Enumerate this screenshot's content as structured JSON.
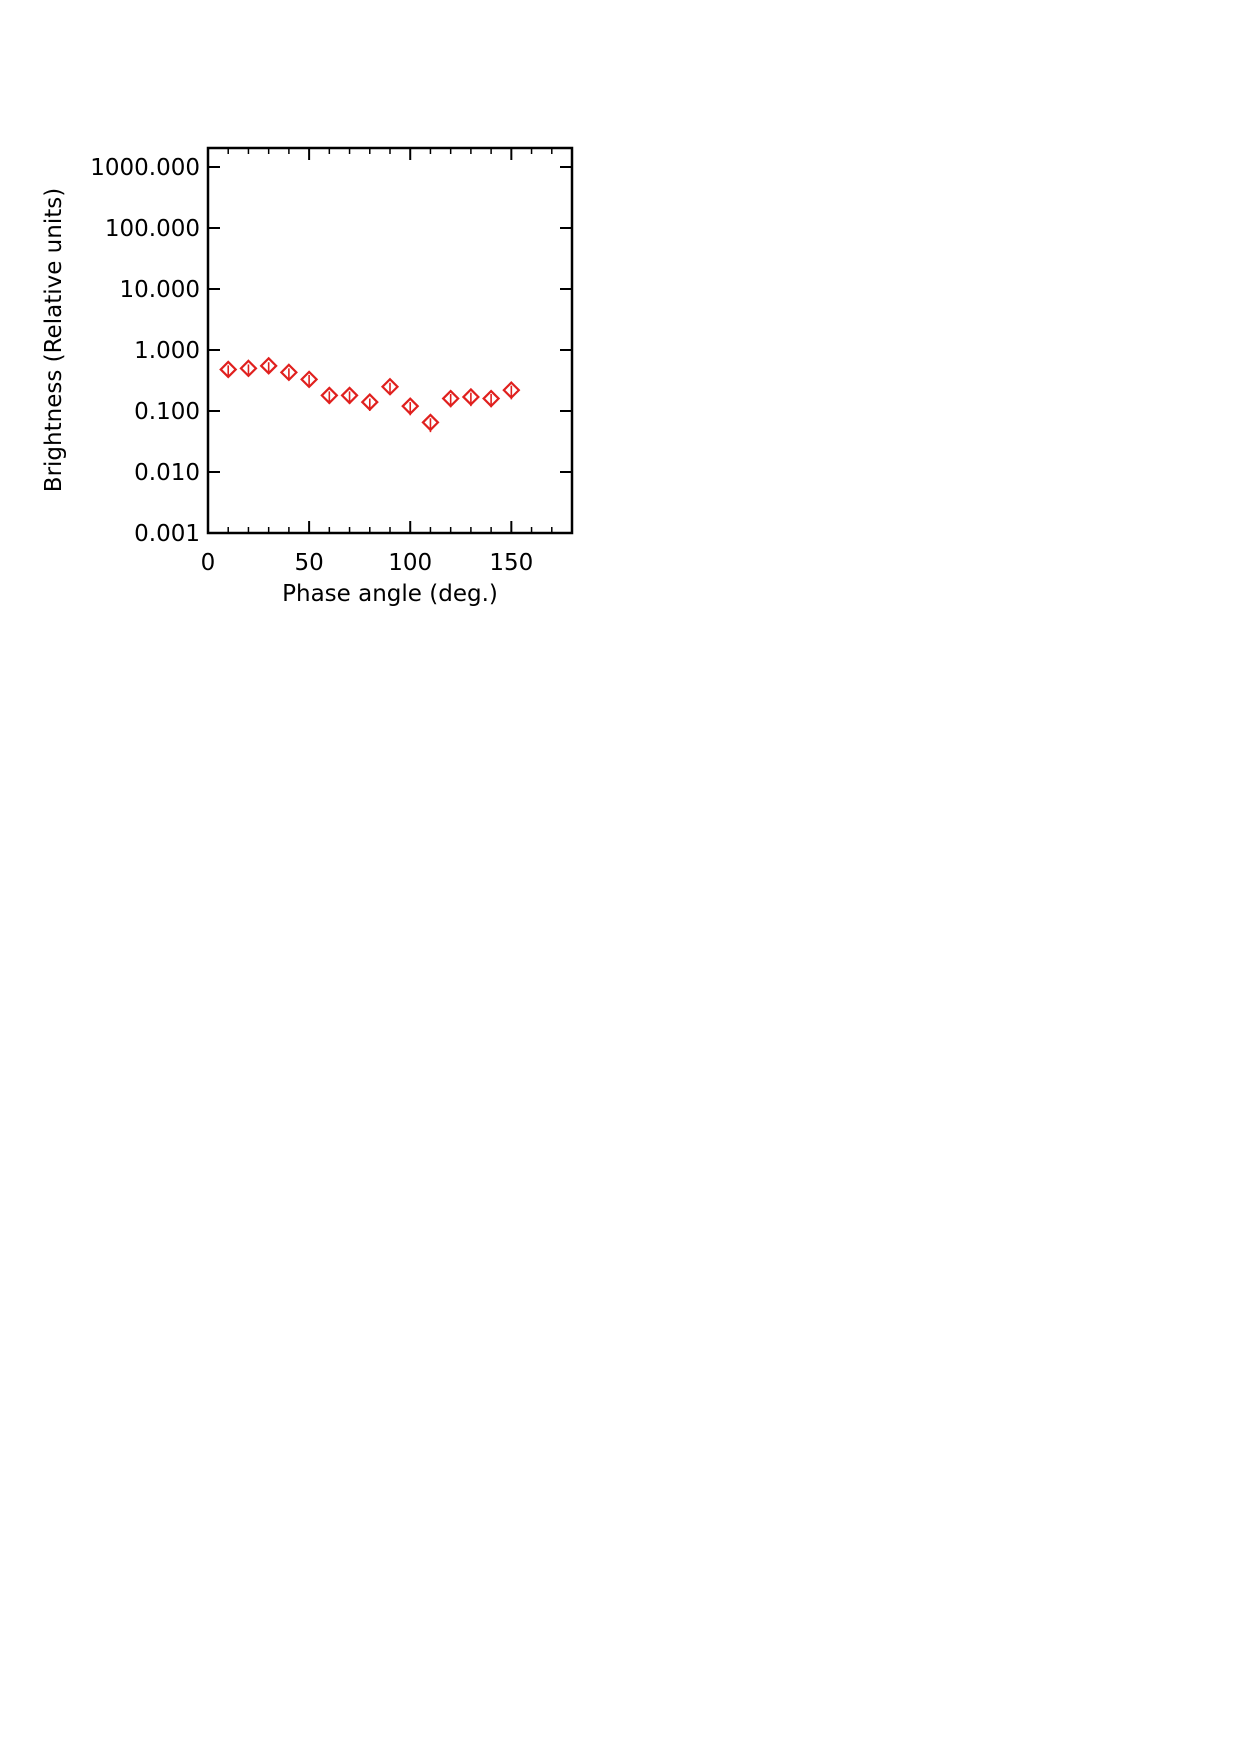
{
  "chart_data": {
    "type": "scatter",
    "title": "",
    "xlabel": "Phase angle (deg.)",
    "ylabel": "Brightness (Relative units)",
    "xlim": [
      0,
      180
    ],
    "ylim": [
      0.001,
      2000
    ],
    "y_scale": "log",
    "x_ticks": [
      0,
      50,
      100,
      150
    ],
    "x_tick_labels": [
      "0",
      "50",
      "100",
      "150"
    ],
    "y_ticks": [
      0.001,
      0.01,
      0.1,
      1,
      10,
      100,
      1000
    ],
    "y_tick_labels": [
      "0.001",
      "0.010",
      "0.100",
      "1.000",
      "10.000",
      "100.000",
      "1000.000"
    ],
    "grid": false,
    "marker": "diamond",
    "error_bars": true,
    "color": "#e0201e",
    "series": [
      {
        "x": [
          10,
          20,
          30,
          40,
          50,
          60,
          70,
          80,
          90,
          100,
          110,
          120,
          130,
          140,
          150
        ],
        "y": [
          0.48,
          0.5,
          0.55,
          0.43,
          0.33,
          0.18,
          0.18,
          0.14,
          0.25,
          0.12,
          0.065,
          0.16,
          0.17,
          0.16,
          0.22
        ],
        "y_err_low": [
          0.38,
          0.4,
          0.44,
          0.34,
          0.25,
          0.13,
          0.13,
          0.1,
          0.19,
          0.085,
          0.045,
          0.115,
          0.12,
          0.115,
          0.155
        ],
        "y_err_high": [
          0.56,
          0.58,
          0.63,
          0.5,
          0.39,
          0.21,
          0.21,
          0.16,
          0.29,
          0.14,
          0.076,
          0.19,
          0.2,
          0.19,
          0.26
        ]
      }
    ]
  }
}
